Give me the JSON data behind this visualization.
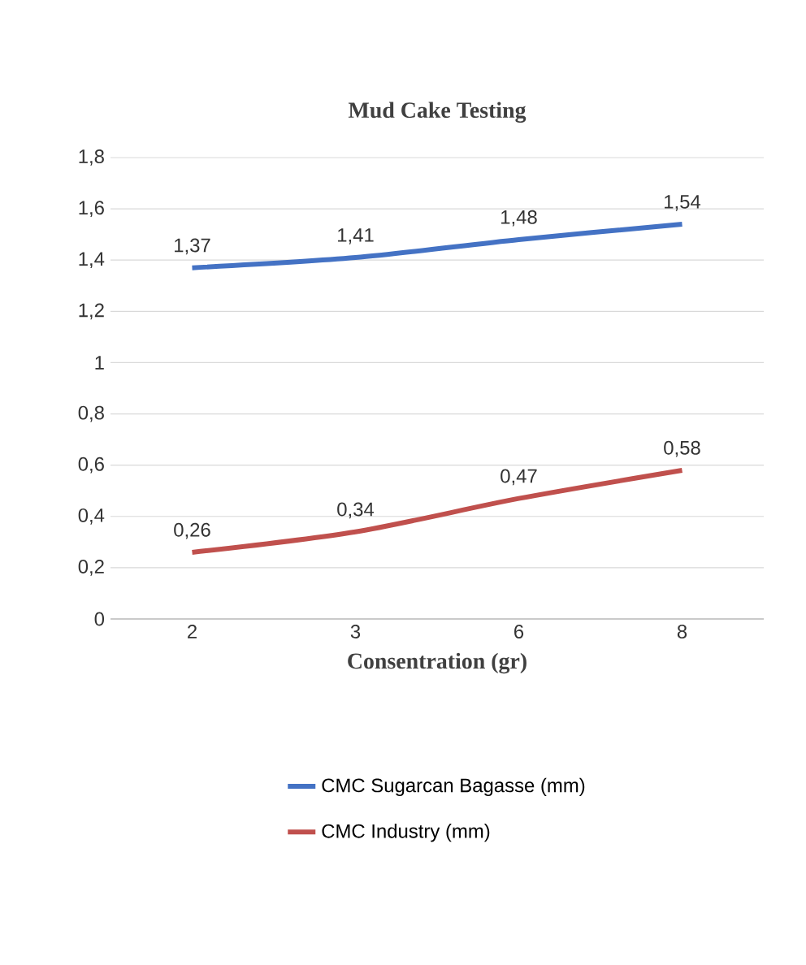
{
  "chart_data": {
    "type": "line",
    "title": "Mud Cake Testing",
    "xlabel": "Consentration (gr)",
    "categories": [
      "2",
      "3",
      "6",
      "8"
    ],
    "series": [
      {
        "name": "CMC Sugarcan Bagasse (mm)",
        "color": "#4472c4",
        "values": [
          1.37,
          1.41,
          1.48,
          1.54
        ],
        "value_labels": [
          "1,37",
          "1,41",
          "1,48",
          "1,54"
        ]
      },
      {
        "name": "CMC Industry (mm)",
        "color": "#c0504d",
        "values": [
          0.26,
          0.34,
          0.47,
          0.58
        ],
        "value_labels": [
          "0,26",
          "0,34",
          "0,47",
          "0,58"
        ]
      }
    ],
    "ylim": [
      0,
      1.8
    ],
    "yticks": [
      {
        "value": 0,
        "label": "0"
      },
      {
        "value": 0.2,
        "label": "0,2"
      },
      {
        "value": 0.4,
        "label": "0,4"
      },
      {
        "value": 0.6,
        "label": "0,6"
      },
      {
        "value": 0.8,
        "label": "0,8"
      },
      {
        "value": 1,
        "label": "1"
      },
      {
        "value": 1.2,
        "label": "1,2"
      },
      {
        "value": 1.4,
        "label": "1,4"
      },
      {
        "value": 1.6,
        "label": "1,6"
      },
      {
        "value": 1.8,
        "label": "1,8"
      }
    ],
    "grid": "y",
    "legend": "bottom",
    "marker": "none",
    "line_style": "solid"
  }
}
